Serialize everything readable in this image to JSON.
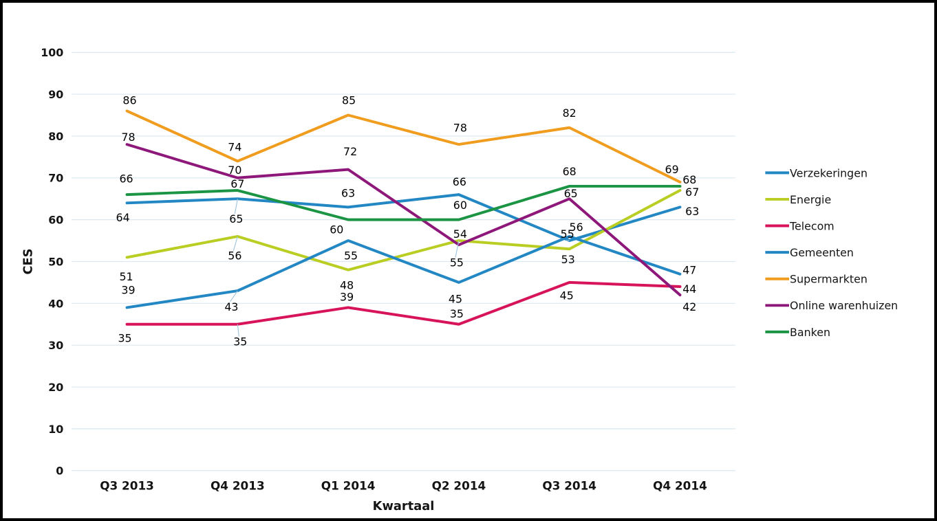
{
  "chart_data": {
    "type": "line",
    "title": "",
    "xlabel": "Kwartaal",
    "ylabel": "CES",
    "categories": [
      "Q3 2013",
      "Q4 2013",
      "Q1 2014",
      "Q2 2014",
      "Q3 2014",
      "Q4 2014"
    ],
    "ylim": [
      0,
      100
    ],
    "ytick_step": 10,
    "grid": "horizontal",
    "gridline_color": "#D9E8F1",
    "leader_color": "#A3C6DE",
    "background": "#FFFFFF",
    "legend_position": "right",
    "series": [
      {
        "name": "Verzekeringen",
        "color": "#2287C3",
        "values": [
          64,
          65,
          63,
          66,
          55,
          63
        ],
        "label_offsets": [
          [
            -6,
            27,
            0
          ],
          [
            -2,
            35,
            1
          ],
          [
            0,
            -15,
            0
          ],
          [
            1,
            -13,
            0
          ],
          [
            -3,
            -4,
            1
          ],
          [
            18,
            12,
            0
          ]
        ]
      },
      {
        "name": "Energie",
        "color": "#B9CD23",
        "values": [
          51,
          56,
          48,
          55,
          53,
          67
        ],
        "label_offsets": [
          [
            -1,
            34,
            0
          ],
          [
            -4,
            34,
            1
          ],
          [
            -2,
            28,
            0
          ],
          [
            -3,
            38,
            1
          ],
          [
            -2,
            21,
            0
          ],
          [
            18,
            8,
            0
          ]
        ]
      },
      {
        "name": "Telecom",
        "color": "#D7145A",
        "values": [
          35,
          35,
          39,
          35,
          45,
          44
        ],
        "label_offsets": [
          [
            -3,
            26,
            0
          ],
          [
            4,
            31,
            1
          ],
          [
            -2,
            -10,
            0
          ],
          [
            -3,
            -10,
            0
          ],
          [
            -4,
            25,
            0
          ],
          [
            14,
            9,
            0
          ]
        ]
      },
      {
        "name": "Gemeenten",
        "color": "#2287C3",
        "values": [
          39,
          43,
          55,
          45,
          56,
          47
        ],
        "label_offsets": [
          [
            2,
            -20,
            0
          ],
          [
            -9,
            29,
            1
          ],
          [
            4,
            28,
            0
          ],
          [
            -5,
            30,
            0
          ],
          [
            10,
            -8,
            0
          ],
          [
            14,
            0,
            0
          ]
        ]
      },
      {
        "name": "Supermarkten",
        "color": "#F09C1E",
        "values": [
          86,
          74,
          85,
          78,
          82,
          69
        ],
        "label_offsets": [
          [
            4,
            -10,
            0
          ],
          [
            -4,
            -15,
            0
          ],
          [
            1,
            -16,
            0
          ],
          [
            2,
            -19,
            0
          ],
          [
            0,
            -16,
            0
          ],
          [
            -12,
            -13,
            0
          ]
        ]
      },
      {
        "name": "Online warenhuizen",
        "color": "#8E177A",
        "values": [
          78,
          70,
          72,
          54,
          65,
          42
        ],
        "label_offsets": [
          [
            2,
            -5,
            0
          ],
          [
            -4,
            -6,
            0
          ],
          [
            3,
            -21,
            0
          ],
          [
            2,
            -10,
            0
          ],
          [
            2,
            -2,
            0
          ],
          [
            14,
            23,
            0
          ]
        ]
      },
      {
        "name": "Banken",
        "color": "#1B9444",
        "values": [
          66,
          67,
          60,
          60,
          68,
          68
        ],
        "label_offsets": [
          [
            -1,
            -18,
            0
          ],
          [
            0,
            -4,
            0
          ],
          [
            -17,
            20,
            0
          ],
          [
            2,
            -16,
            0
          ],
          [
            0,
            -16,
            0
          ],
          [
            14,
            -4,
            0
          ]
        ]
      }
    ]
  }
}
